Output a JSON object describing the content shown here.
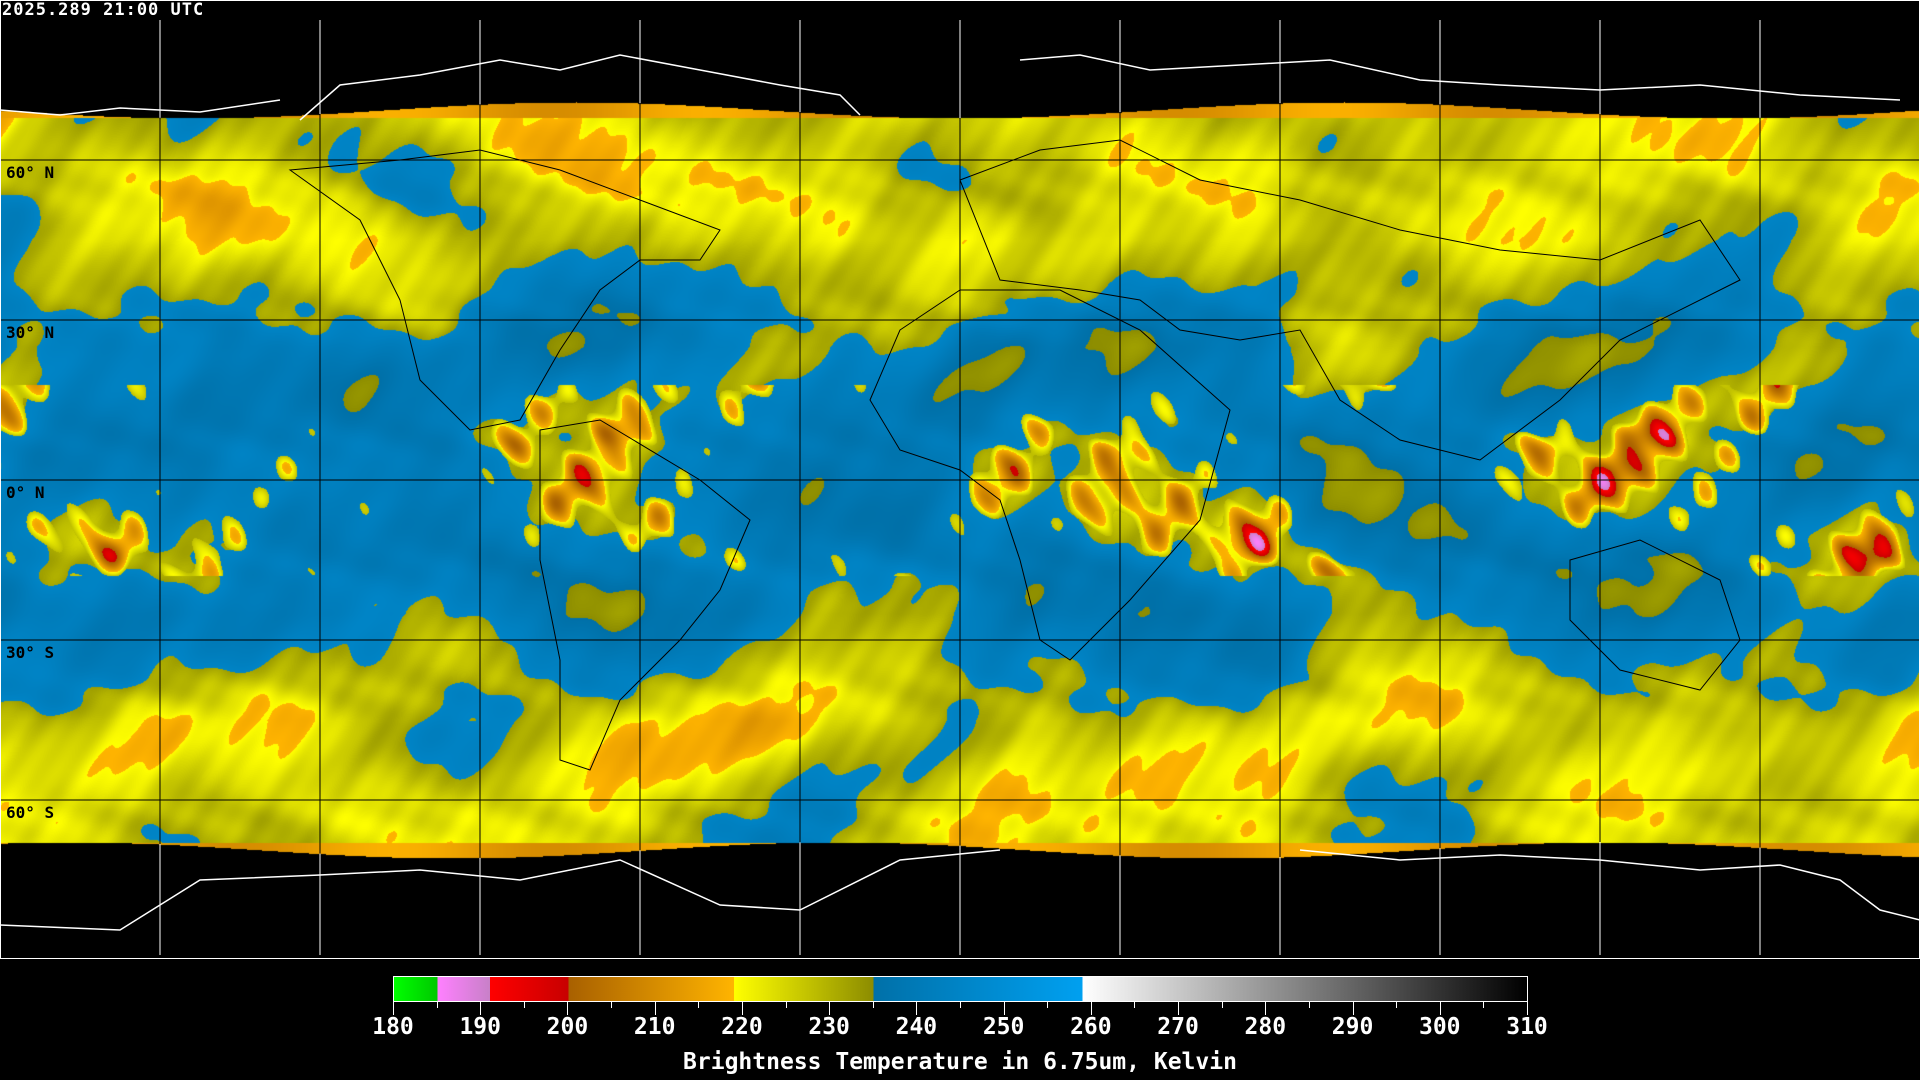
{
  "header": {
    "timestamp": "2025.289 21:00 UTC"
  },
  "map": {
    "projection": "equirectangular",
    "lat_labels": [
      "60° N",
      "30° N",
      "0° N",
      "30° S",
      "60° S"
    ],
    "lat_values": [
      60,
      30,
      0,
      -30,
      -60
    ],
    "grid_spacing_deg": 30,
    "coastline_color": "#000000",
    "polar_coastline_color": "#ffffff",
    "grid_color_over_data": "#000000",
    "grid_color_outside": "#ffffff"
  },
  "colorbar": {
    "min": 180,
    "max": 310,
    "tick_labels": [
      "180",
      "190",
      "200",
      "210",
      "220",
      "230",
      "240",
      "250",
      "260",
      "270",
      "280",
      "290",
      "300",
      "310"
    ],
    "minor_tick_step": 5,
    "title": "Brightness Temperature in 6.75um, Kelvin",
    "segments": [
      {
        "from": 180,
        "to": 185,
        "start": "#00ff00",
        "end": "#00c800"
      },
      {
        "from": 185,
        "to": 191,
        "start": "#ff80ff",
        "end": "#c880c8"
      },
      {
        "from": 191,
        "to": 200,
        "start": "#ff0000",
        "end": "#c80000"
      },
      {
        "from": 200,
        "to": 219,
        "start": "#a86000",
        "end": "#ffb400"
      },
      {
        "from": 219,
        "to": 235,
        "start": "#ffff00",
        "end": "#8c8c00"
      },
      {
        "from": 235,
        "to": 259,
        "start": "#0070a8",
        "end": "#00a0f0"
      },
      {
        "from": 259,
        "to": 310,
        "start": "#ffffff",
        "end": "#000000"
      }
    ]
  }
}
